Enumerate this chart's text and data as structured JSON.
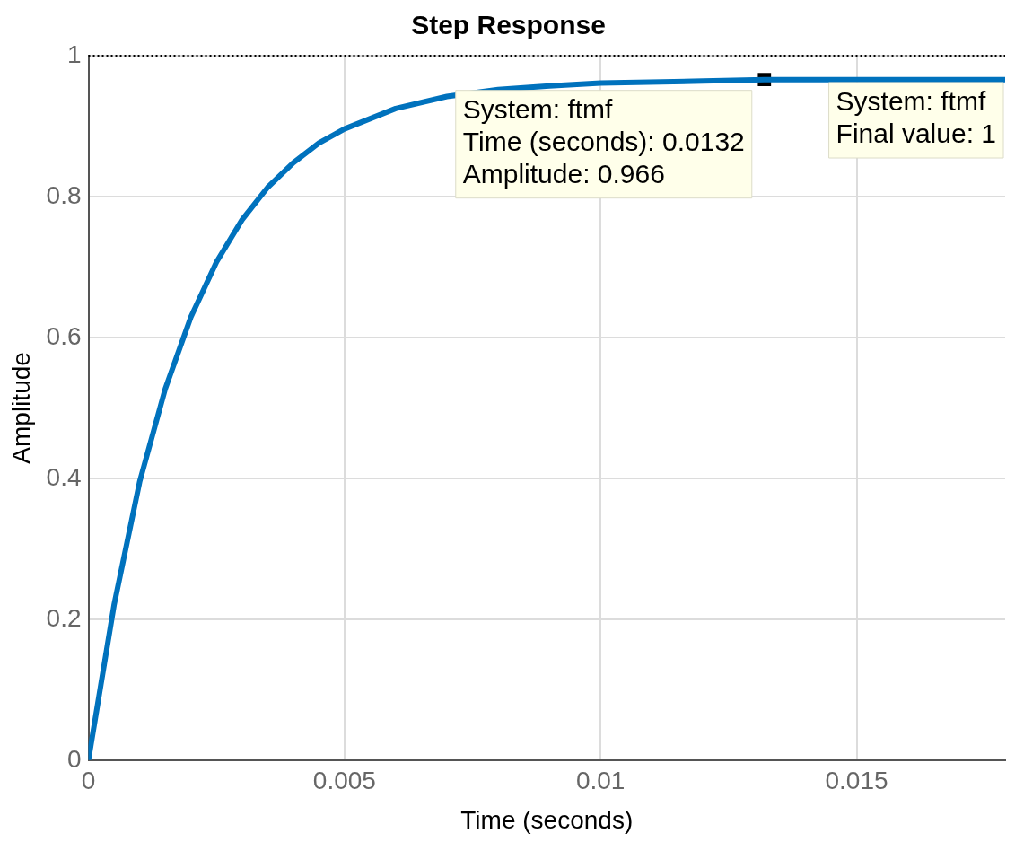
{
  "chart_data": {
    "type": "line",
    "title": "Step Response",
    "xlabel": "Time (seconds)",
    "ylabel": "Amplitude",
    "xlim": [
      0,
      0.0179
    ],
    "ylim": [
      0,
      1
    ],
    "xticks": [
      0,
      0.005,
      0.01,
      0.015
    ],
    "yticks": [
      0,
      0.2,
      0.4,
      0.6,
      0.8,
      1
    ],
    "grid": true,
    "legend": false,
    "series": [
      {
        "color": "#0072bd",
        "marker": "none",
        "line_style": "solid",
        "x": [
          0,
          0.0005,
          0.001,
          0.0015,
          0.002,
          0.0025,
          0.003,
          0.0035,
          0.004,
          0.0045,
          0.005,
          0.006,
          0.007,
          0.008,
          0.009,
          0.01,
          0.012,
          0.0132,
          0.0179
        ],
        "values": [
          0,
          0.22,
          0.395,
          0.527,
          0.629,
          0.707,
          0.767,
          0.813,
          0.848,
          0.876,
          0.896,
          0.925,
          0.942,
          0.952,
          0.957,
          0.961,
          0.964,
          0.966,
          0.966
        ]
      },
      {
        "type": "scatter",
        "color": "#000000",
        "marker": "square",
        "x": [
          0.0132
        ],
        "values": [
          0.966
        ]
      }
    ],
    "ref_lines": [
      {
        "axis": "y",
        "value": 1,
        "color": "#000000",
        "line_style": "dotted"
      }
    ],
    "annotations": [
      {
        "text": "System: ftmf\nTime (seconds): 0.0132\nAmplitude: 0.966",
        "x": 0.0132,
        "y": 0.966
      },
      {
        "text": "System: ftmf\nFinal value: 1",
        "y": 1
      }
    ]
  }
}
